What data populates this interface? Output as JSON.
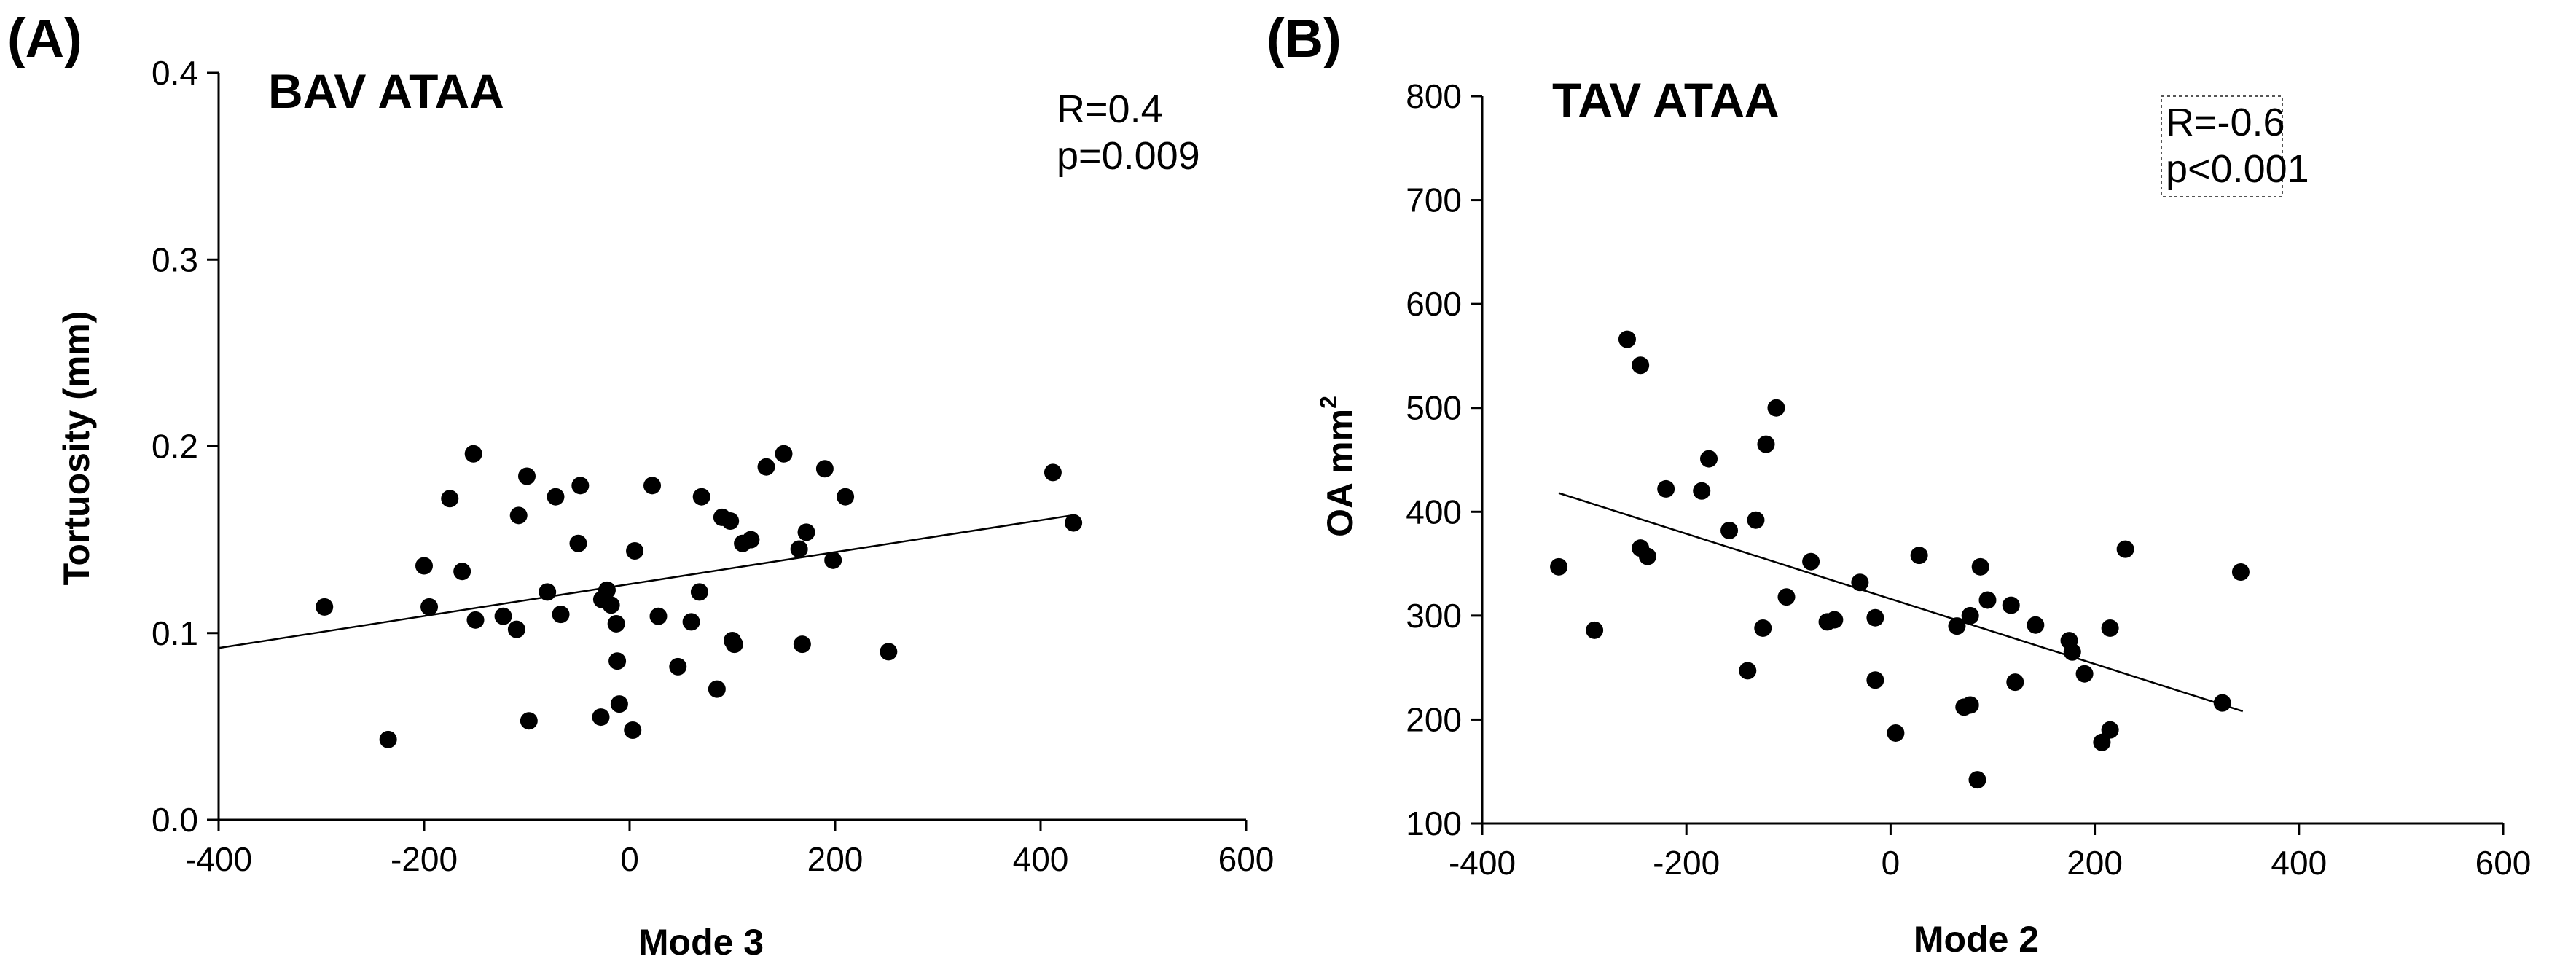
{
  "chart_data": [
    {
      "type": "scatter",
      "panel_label": "(A)",
      "title": "BAV ATAA",
      "xlabel": "Mode 3",
      "ylabel": "Tortuosity (mm)",
      "xlim": [
        -400,
        600
      ],
      "ylim": [
        0.0,
        0.4
      ],
      "xticks": [
        -400,
        -200,
        0,
        200,
        400,
        600
      ],
      "xtick_labels": [
        "-400",
        "-200",
        "0",
        "200",
        "400",
        "600"
      ],
      "yticks": [
        0.0,
        0.1,
        0.2,
        0.3,
        0.4
      ],
      "ytick_labels": [
        "0.0",
        "0.1",
        "0.2",
        "0.3",
        "0.4"
      ],
      "grid": false,
      "stats": [
        "R=0.4",
        "p=0.009"
      ],
      "fit_line": {
        "x": [
          -400,
          430
        ],
        "y": [
          0.092,
          0.163
        ]
      },
      "points": [
        [
          -297,
          0.114
        ],
        [
          -235,
          0.043
        ],
        [
          -200,
          0.136
        ],
        [
          -195,
          0.114
        ],
        [
          -175,
          0.172
        ],
        [
          -163,
          0.133
        ],
        [
          -152,
          0.196
        ],
        [
          -150,
          0.107
        ],
        [
          -123,
          0.109
        ],
        [
          -110,
          0.102
        ],
        [
          -108,
          0.163
        ],
        [
          -100,
          0.184
        ],
        [
          -98,
          0.053
        ],
        [
          -80,
          0.122
        ],
        [
          -72,
          0.173
        ],
        [
          -67,
          0.11
        ],
        [
          -50,
          0.148
        ],
        [
          -48,
          0.179
        ],
        [
          -28,
          0.055
        ],
        [
          -27,
          0.118
        ],
        [
          -22,
          0.123
        ],
        [
          -18,
          0.115
        ],
        [
          -13,
          0.105
        ],
        [
          -12,
          0.085
        ],
        [
          -10,
          0.062
        ],
        [
          3,
          0.048
        ],
        [
          5,
          0.144
        ],
        [
          22,
          0.179
        ],
        [
          28,
          0.109
        ],
        [
          47,
          0.082
        ],
        [
          60,
          0.106
        ],
        [
          68,
          0.122
        ],
        [
          70,
          0.173
        ],
        [
          85,
          0.07
        ],
        [
          90,
          0.162
        ],
        [
          98,
          0.16
        ],
        [
          100,
          0.096
        ],
        [
          102,
          0.094
        ],
        [
          110,
          0.148
        ],
        [
          118,
          0.15
        ],
        [
          133,
          0.189
        ],
        [
          150,
          0.196
        ],
        [
          165,
          0.145
        ],
        [
          168,
          0.094
        ],
        [
          172,
          0.154
        ],
        [
          190,
          0.188
        ],
        [
          198,
          0.139
        ],
        [
          210,
          0.173
        ],
        [
          252,
          0.09
        ],
        [
          412,
          0.186
        ],
        [
          432,
          0.159
        ]
      ]
    },
    {
      "type": "scatter",
      "panel_label": "(B)",
      "title": "TAV ATAA",
      "xlabel": "Mode 2",
      "ylabel_main": "OA mm",
      "ylabel_sup": "2",
      "xlim": [
        -400,
        600
      ],
      "ylim": [
        100,
        800
      ],
      "xticks": [
        -400,
        -200,
        0,
        200,
        400,
        600
      ],
      "xtick_labels": [
        "-400",
        "-200",
        "0",
        "200",
        "400",
        "600"
      ],
      "yticks": [
        100,
        200,
        300,
        400,
        500,
        600,
        700,
        800
      ],
      "ytick_labels": [
        "100",
        "200",
        "300",
        "400",
        "500",
        "600",
        "700",
        "800"
      ],
      "grid": false,
      "stats": [
        "R=-0.6",
        "p<0.001"
      ],
      "fit_line": {
        "x": [
          -325,
          345
        ],
        "y": [
          418,
          208
        ]
      },
      "points": [
        [
          -325,
          347
        ],
        [
          -290,
          286
        ],
        [
          -258,
          566
        ],
        [
          -245,
          541
        ],
        [
          -245,
          365
        ],
        [
          -238,
          357
        ],
        [
          -220,
          422
        ],
        [
          -185,
          420
        ],
        [
          -178,
          451
        ],
        [
          -158,
          382
        ],
        [
          -140,
          247
        ],
        [
          -132,
          392
        ],
        [
          -125,
          288
        ],
        [
          -122,
          465
        ],
        [
          -112,
          500
        ],
        [
          -102,
          318
        ],
        [
          -78,
          352
        ],
        [
          -62,
          294
        ],
        [
          -55,
          296
        ],
        [
          -30,
          332
        ],
        [
          -15,
          298
        ],
        [
          -15,
          238
        ],
        [
          5,
          187
        ],
        [
          28,
          358
        ],
        [
          65,
          290
        ],
        [
          72,
          212
        ],
        [
          78,
          214
        ],
        [
          78,
          300
        ],
        [
          85,
          142
        ],
        [
          88,
          347
        ],
        [
          95,
          315
        ],
        [
          118,
          310
        ],
        [
          122,
          236
        ],
        [
          142,
          291
        ],
        [
          175,
          276
        ],
        [
          178,
          265
        ],
        [
          190,
          244
        ],
        [
          207,
          178
        ],
        [
          215,
          288
        ],
        [
          215,
          190
        ],
        [
          230,
          364
        ],
        [
          325,
          216
        ],
        [
          343,
          342
        ]
      ]
    }
  ]
}
